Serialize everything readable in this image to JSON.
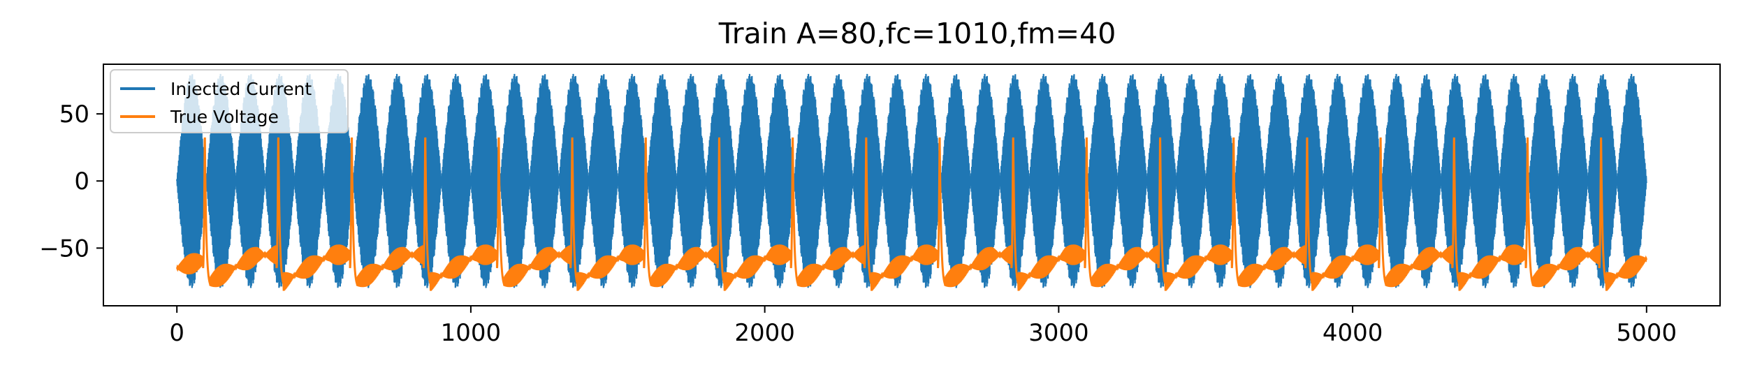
{
  "chart_data": {
    "type": "line",
    "title": "Train A=80,fc=1010,fm=40",
    "xlabel": "",
    "ylabel": "",
    "xlim": [
      -250,
      5250
    ],
    "ylim": [
      -93,
      87
    ],
    "x_ticks": [
      0,
      1000,
      2000,
      3000,
      4000,
      5000
    ],
    "y_ticks": [
      -50,
      0,
      50
    ],
    "x_tick_labels": [
      "0",
      "1000",
      "2000",
      "3000",
      "4000",
      "5000"
    ],
    "y_tick_labels": [
      "−50",
      "0",
      "50"
    ],
    "grid": false,
    "legend_position": "upper-left",
    "x_range": [
      0,
      5000
    ],
    "series": [
      {
        "name": "Injected Current",
        "color": "#1f77b4",
        "description_values": {
          "amplitude": 80,
          "carrier_frequency": 1010,
          "modulation_frequency": 40,
          "envelope_period": 100,
          "y_min": -80,
          "y_max": 80
        }
      },
      {
        "name": "True Voltage",
        "color": "#ff7f0e",
        "description_values": {
          "resting_level": -65,
          "trough_level": -80,
          "oscillation_amplitude": 8,
          "spike_peak": 37,
          "spike_times": [
            95,
            345,
            595,
            845,
            1095,
            1345,
            1595,
            1845,
            2095,
            2345,
            2595,
            2845,
            3095,
            3345,
            3595,
            3845,
            4095,
            4345,
            4595,
            4845
          ]
        }
      }
    ]
  }
}
